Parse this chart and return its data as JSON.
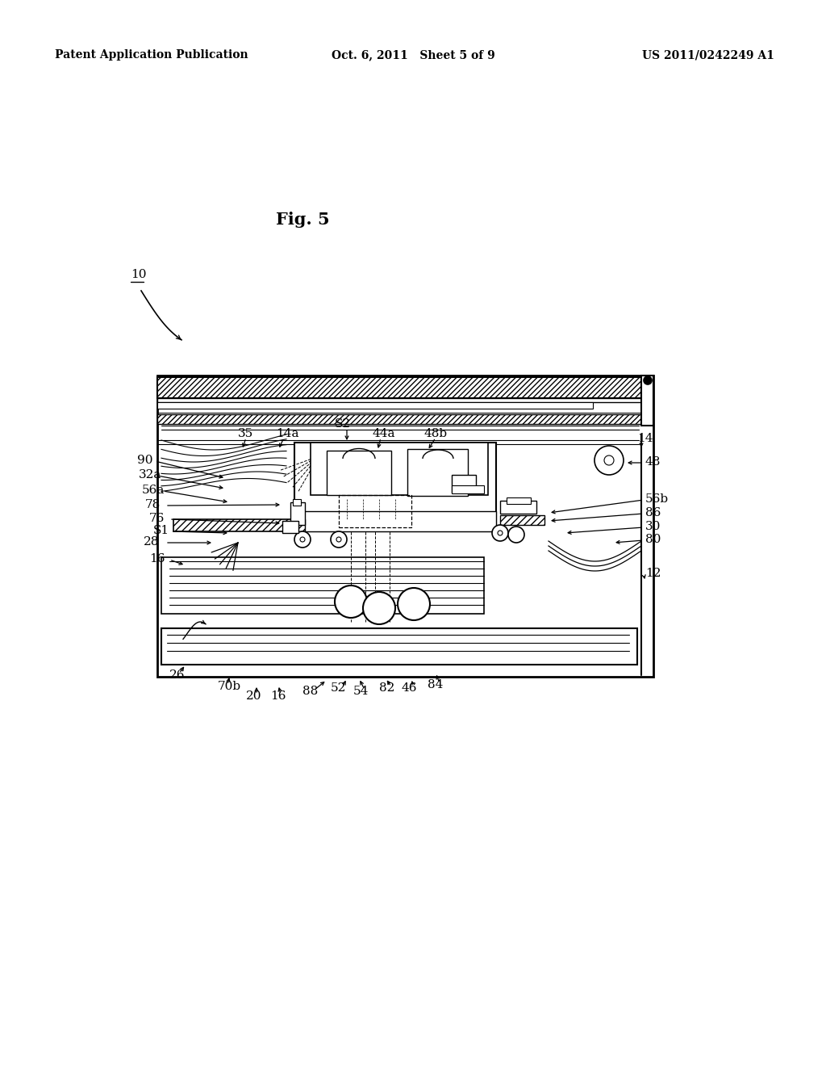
{
  "header_left": "Patent Application Publication",
  "header_mid": "Oct. 6, 2011   Sheet 5 of 9",
  "header_right": "US 2011/0242249 A1",
  "fig_label": "Fig. 5",
  "bg_color": "#ffffff",
  "line_color": "#000000"
}
